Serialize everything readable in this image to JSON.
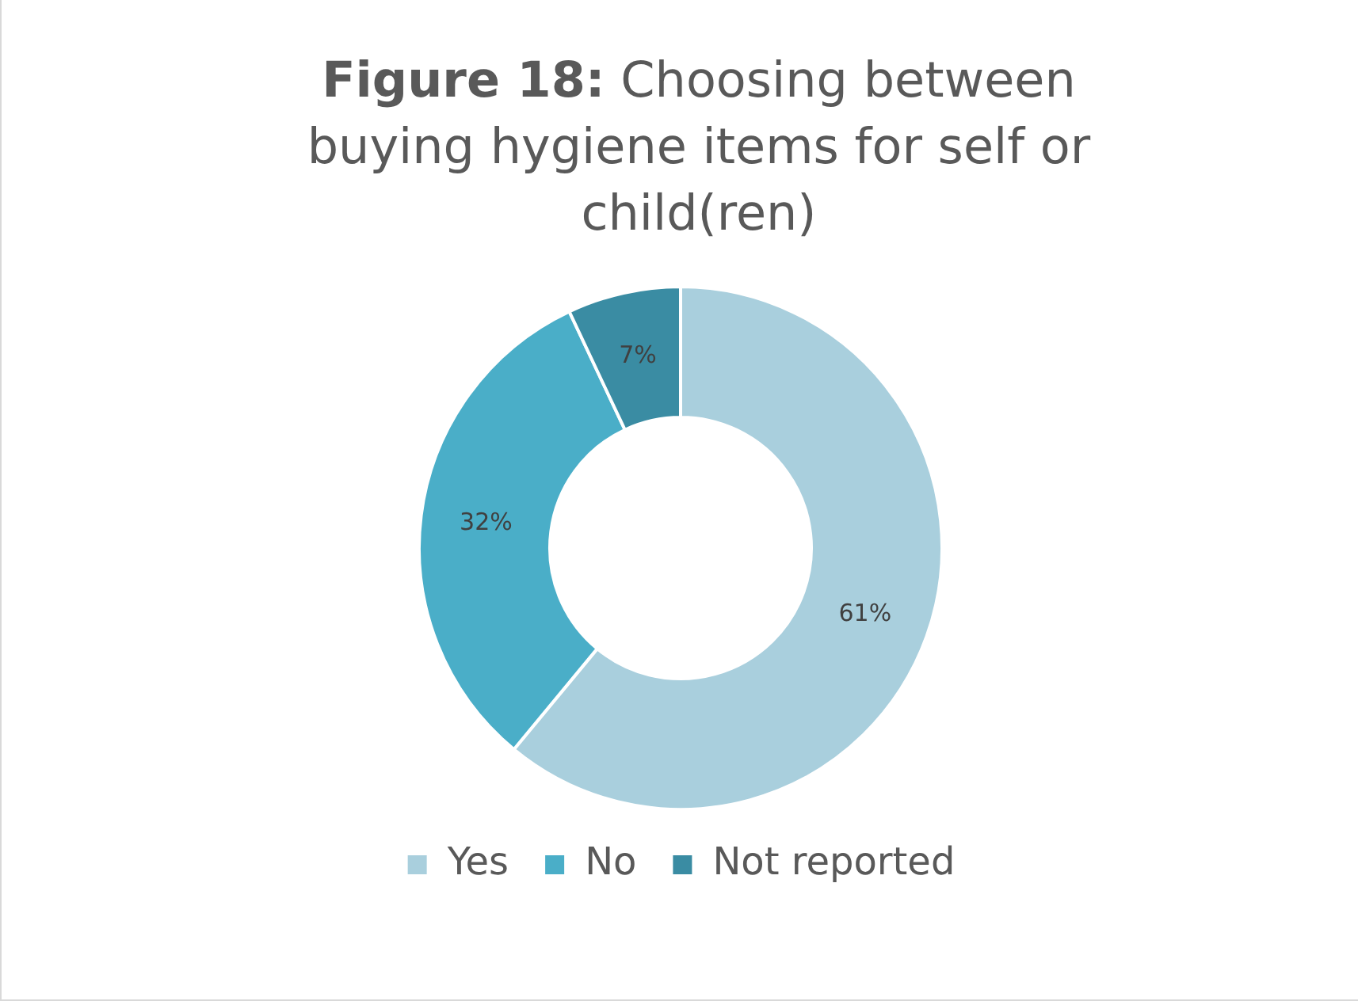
{
  "chart_data": {
    "type": "donut",
    "title": "Figure 18: Choosing between buying hygiene items for self or child(ren)",
    "categories": [
      "Yes",
      "No",
      "Not reported"
    ],
    "values": [
      61,
      32,
      7
    ],
    "colors": [
      "#a9cfdd",
      "#4aaec8",
      "#3a8ca3"
    ],
    "value_labels": [
      "61%",
      "32%",
      "7%"
    ],
    "legend": "bottom"
  }
}
